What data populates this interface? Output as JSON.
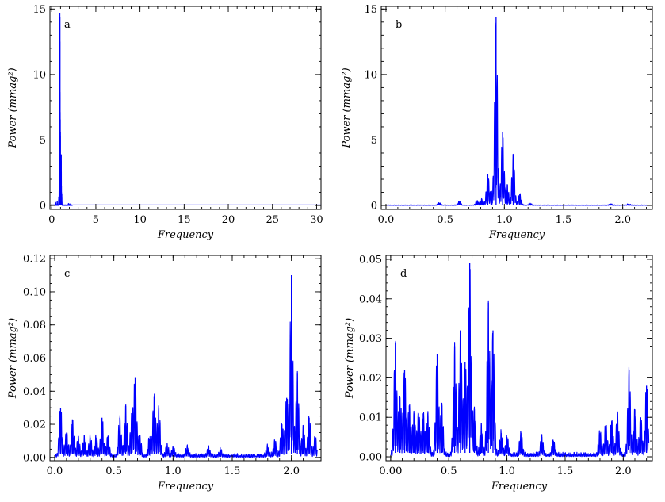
{
  "colors": {
    "trace": "#0000ff",
    "axes": "#000000",
    "background": "#ffffff"
  },
  "chart_data": [
    {
      "id": "a",
      "type": "line",
      "panel_label": "a",
      "xlabel": "Frequency",
      "ylabel": "Power (mmag²)",
      "xlim": [
        -0.2,
        30.5
      ],
      "ylim": [
        -0.3,
        15.2
      ],
      "xticks": [
        0,
        5,
        10,
        15,
        20,
        25,
        30
      ],
      "xtick_labels": [
        "0",
        "5",
        "10",
        "15",
        "20",
        "25",
        "30"
      ],
      "yticks": [
        0,
        5,
        10,
        15
      ],
      "ytick_labels": [
        "0",
        "5",
        "10",
        "15"
      ],
      "minor_x_step": 1,
      "minor_y_step": 1,
      "baseline": 0.04,
      "peaks": [
        [
          0.93,
          14.4
        ],
        [
          0.98,
          5.6
        ],
        [
          1.08,
          3.9
        ],
        [
          0.86,
          2.4
        ],
        [
          1.02,
          1.6
        ],
        [
          1.14,
          0.9
        ],
        [
          0.8,
          0.6
        ],
        [
          0.62,
          0.3
        ],
        [
          0.45,
          0.2
        ],
        [
          1.9,
          0.12
        ],
        [
          2.05,
          0.1
        ]
      ]
    },
    {
      "id": "b",
      "type": "line",
      "panel_label": "b",
      "xlabel": "Frequency",
      "ylabel": "Power (mmag²)",
      "xlim": [
        -0.04,
        2.25
      ],
      "ylim": [
        -0.3,
        15.2
      ],
      "xticks": [
        0.0,
        0.5,
        1.0,
        1.5,
        2.0
      ],
      "xtick_labels": [
        "0.0",
        "0.5",
        "1.0",
        "1.5",
        "2.0"
      ],
      "yticks": [
        0,
        5,
        10,
        15
      ],
      "ytick_labels": [
        "0",
        "5",
        "10",
        "15"
      ],
      "minor_x_step": 0.1,
      "minor_y_step": 1,
      "baseline": 0.04,
      "peaks": [
        [
          0.93,
          14.4
        ],
        [
          0.985,
          5.6
        ],
        [
          1.075,
          3.9
        ],
        [
          0.86,
          2.4
        ],
        [
          1.025,
          1.6
        ],
        [
          0.895,
          0.9
        ],
        [
          1.13,
          0.9
        ],
        [
          0.81,
          0.5
        ],
        [
          0.77,
          0.35
        ],
        [
          0.62,
          0.3
        ],
        [
          0.45,
          0.2
        ],
        [
          1.22,
          0.15
        ],
        [
          1.9,
          0.12
        ],
        [
          2.05,
          0.1
        ]
      ]
    },
    {
      "id": "c",
      "type": "line",
      "panel_label": "c",
      "xlabel": "Frequency",
      "ylabel": "Power (mmag²)",
      "xlim": [
        -0.04,
        2.25
      ],
      "ylim": [
        -0.002,
        0.122
      ],
      "xticks": [
        0.0,
        0.5,
        1.0,
        1.5,
        2.0
      ],
      "xtick_labels": [
        "0.0",
        "0.5",
        "1.0",
        "1.5",
        "2.0"
      ],
      "yticks": [
        0.0,
        0.02,
        0.04,
        0.06,
        0.08,
        0.1,
        0.12
      ],
      "ytick_labels": [
        "0.00",
        "0.02",
        "0.04",
        "0.06",
        "0.08",
        "0.10",
        "0.12"
      ],
      "minor_x_step": 0.1,
      "minor_y_step": 0.005,
      "baseline": 0.002,
      "peaks": [
        [
          0.05,
          0.03
        ],
        [
          0.1,
          0.015
        ],
        [
          0.15,
          0.023
        ],
        [
          0.2,
          0.011
        ],
        [
          0.25,
          0.012
        ],
        [
          0.3,
          0.012
        ],
        [
          0.35,
          0.012
        ],
        [
          0.4,
          0.024
        ],
        [
          0.45,
          0.013
        ],
        [
          0.55,
          0.024
        ],
        [
          0.6,
          0.031
        ],
        [
          0.65,
          0.024
        ],
        [
          0.68,
          0.048
        ],
        [
          0.72,
          0.012
        ],
        [
          0.8,
          0.011
        ],
        [
          0.84,
          0.037
        ],
        [
          0.88,
          0.03
        ],
        [
          0.95,
          0.007
        ],
        [
          1.0,
          0.006
        ],
        [
          1.12,
          0.006
        ],
        [
          1.3,
          0.005
        ],
        [
          1.4,
          0.004
        ],
        [
          1.8,
          0.006
        ],
        [
          1.86,
          0.01
        ],
        [
          1.92,
          0.02
        ],
        [
          1.96,
          0.036
        ],
        [
          2.0,
          0.11
        ],
        [
          2.05,
          0.051
        ],
        [
          2.1,
          0.018
        ],
        [
          2.15,
          0.024
        ],
        [
          2.2,
          0.012
        ]
      ]
    },
    {
      "id": "d",
      "type": "line",
      "panel_label": "d",
      "xlabel": "Frequency",
      "ylabel": "Power (mmag²)",
      "xlim": [
        -0.04,
        2.25
      ],
      "ylim": [
        -0.001,
        0.051
      ],
      "xticks": [
        0.0,
        0.5,
        1.0,
        1.5,
        2.0
      ],
      "xtick_labels": [
        "0.00",
        "0.5",
        "1.0",
        "1.5",
        "2.0"
      ],
      "yticks": [
        0.0,
        0.01,
        0.02,
        0.03,
        0.04,
        0.05
      ],
      "ytick_labels": [
        "0.00",
        "0.01",
        "0.02",
        "0.03",
        "0.04",
        "0.05"
      ],
      "minor_x_step": 0.1,
      "minor_y_step": 0.002,
      "baseline": 0.001,
      "peaks": [
        [
          0.04,
          0.029
        ],
        [
          0.08,
          0.015
        ],
        [
          0.12,
          0.022
        ],
        [
          0.16,
          0.013
        ],
        [
          0.2,
          0.011
        ],
        [
          0.24,
          0.011
        ],
        [
          0.28,
          0.011
        ],
        [
          0.32,
          0.011
        ],
        [
          0.4,
          0.026
        ],
        [
          0.44,
          0.013
        ],
        [
          0.55,
          0.028
        ],
        [
          0.6,
          0.032
        ],
        [
          0.64,
          0.024
        ],
        [
          0.68,
          0.049
        ],
        [
          0.72,
          0.012
        ],
        [
          0.78,
          0.008
        ],
        [
          0.84,
          0.039
        ],
        [
          0.88,
          0.032
        ],
        [
          0.95,
          0.006
        ],
        [
          1.0,
          0.005
        ],
        [
          1.12,
          0.006
        ],
        [
          1.3,
          0.005
        ],
        [
          1.4,
          0.004
        ],
        [
          1.8,
          0.006
        ],
        [
          1.85,
          0.008
        ],
        [
          1.9,
          0.009
        ],
        [
          1.95,
          0.011
        ],
        [
          2.05,
          0.022
        ],
        [
          2.1,
          0.012
        ],
        [
          2.15,
          0.01
        ],
        [
          2.2,
          0.018
        ]
      ]
    }
  ]
}
